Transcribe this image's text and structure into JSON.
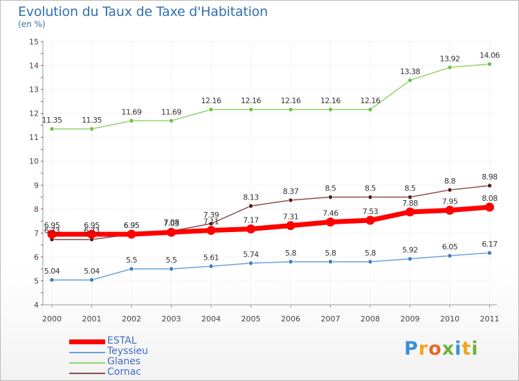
{
  "header": {
    "title": "Evolution du Taux de Taxe d'Habitation",
    "subtitle": "(en %)"
  },
  "brand": {
    "letters": [
      "P",
      "r",
      "o",
      "x",
      "i",
      "t",
      "i"
    ],
    "colors": [
      "#3a8fd6",
      "#f2a51a",
      "#e9672c",
      "#6bb33b",
      "#3a8fd6",
      "#f2a51a",
      "#6bb33b"
    ]
  },
  "chart_data": {
    "type": "line",
    "categories": [
      "2000",
      "2001",
      "2002",
      "2003",
      "2004",
      "2005",
      "2006",
      "2007",
      "2008",
      "2009",
      "2010",
      "2011"
    ],
    "ylim": [
      4,
      15
    ],
    "yticks": [
      4,
      5,
      6,
      7,
      8,
      9,
      10,
      11,
      12,
      13,
      14,
      15
    ],
    "grid": true,
    "legend_position": "bottom-left",
    "series": [
      {
        "name": "Glanes",
        "color": "#8fd36a",
        "marker": "#6dc040",
        "thick": false,
        "values": [
          11.35,
          11.35,
          11.69,
          11.69,
          12.16,
          12.16,
          12.16,
          12.16,
          12.16,
          13.38,
          13.92,
          14.06
        ],
        "labels": [
          "11.35",
          "11.35",
          "11.69",
          "11.69",
          "12.16",
          "12.16",
          "12.16",
          "12.16",
          "12.16",
          "13.38",
          "13.92",
          "14.06"
        ]
      },
      {
        "name": "Cornac",
        "color": "#8b4a4a",
        "marker": "#5a1a1a",
        "thick": false,
        "values": [
          6.73,
          6.73,
          6.95,
          7.08,
          7.39,
          8.13,
          8.37,
          8.5,
          8.5,
          8.5,
          8.8,
          8.98
        ],
        "labels": [
          "6.73",
          "6.73",
          "6.95",
          "7.08",
          "7.39",
          "8.13",
          "8.37",
          "8.5",
          "8.5",
          "8.5",
          "8.8",
          "8.98"
        ]
      },
      {
        "name": "Teyssieu",
        "color": "#6aa0d8",
        "marker": "#3d7cc2",
        "thick": false,
        "values": [
          5.04,
          5.04,
          5.5,
          5.5,
          5.61,
          5.74,
          5.8,
          5.8,
          5.8,
          5.92,
          6.05,
          6.17
        ],
        "labels": [
          "5.04",
          "5.04",
          "5.5",
          "5.5",
          "5.61",
          "5.74",
          "5.8",
          "5.8",
          "5.8",
          "5.92",
          "6.05",
          "6.17"
        ]
      },
      {
        "name": "ESTAL",
        "color": "#ff0000",
        "marker": "#ff0000",
        "thick": true,
        "values": [
          6.95,
          6.95,
          6.95,
          7.03,
          7.11,
          7.17,
          7.31,
          7.46,
          7.53,
          7.88,
          7.95,
          8.08
        ],
        "labels": [
          "6.95",
          "6.95",
          "6.95",
          "7.03",
          "7.11",
          "7.17",
          "7.31",
          "7.46",
          "7.53",
          "7.88",
          "7.95",
          "8.08"
        ]
      }
    ],
    "legend_order": [
      "ESTAL",
      "Teyssieu",
      "Glanes",
      "Cornac"
    ]
  }
}
